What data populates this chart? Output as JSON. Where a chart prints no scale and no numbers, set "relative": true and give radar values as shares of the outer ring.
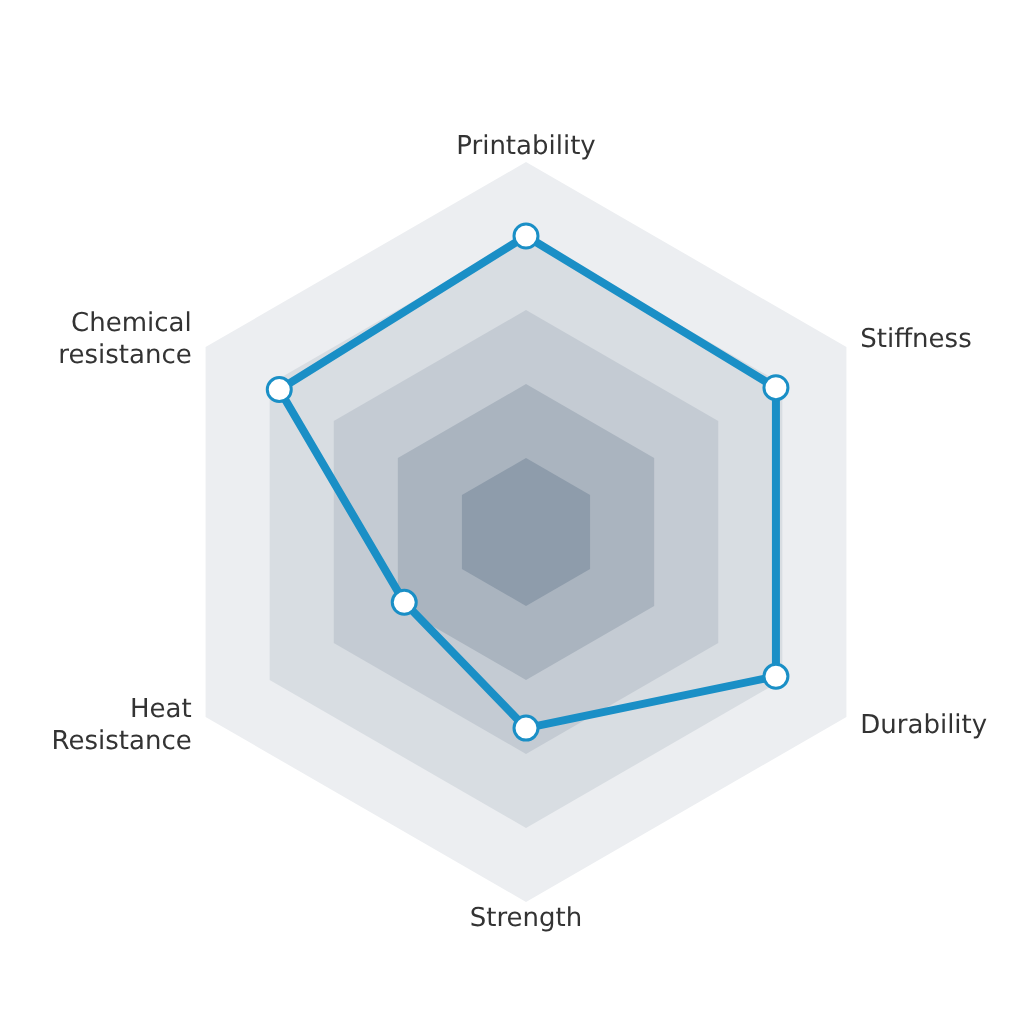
{
  "chart_data": {
    "type": "radar",
    "relative": true,
    "categories": [
      "Printability",
      "Stiffness",
      "Durability",
      "Strength",
      "Heat Resistance",
      "Chemical resistance"
    ],
    "series": [
      {
        "color": "#1a8fc6",
        "values": [
          0.8,
          0.78,
          0.78,
          0.53,
          0.38,
          0.77
        ]
      }
    ],
    "grid": true,
    "marker": "circle"
  }
}
